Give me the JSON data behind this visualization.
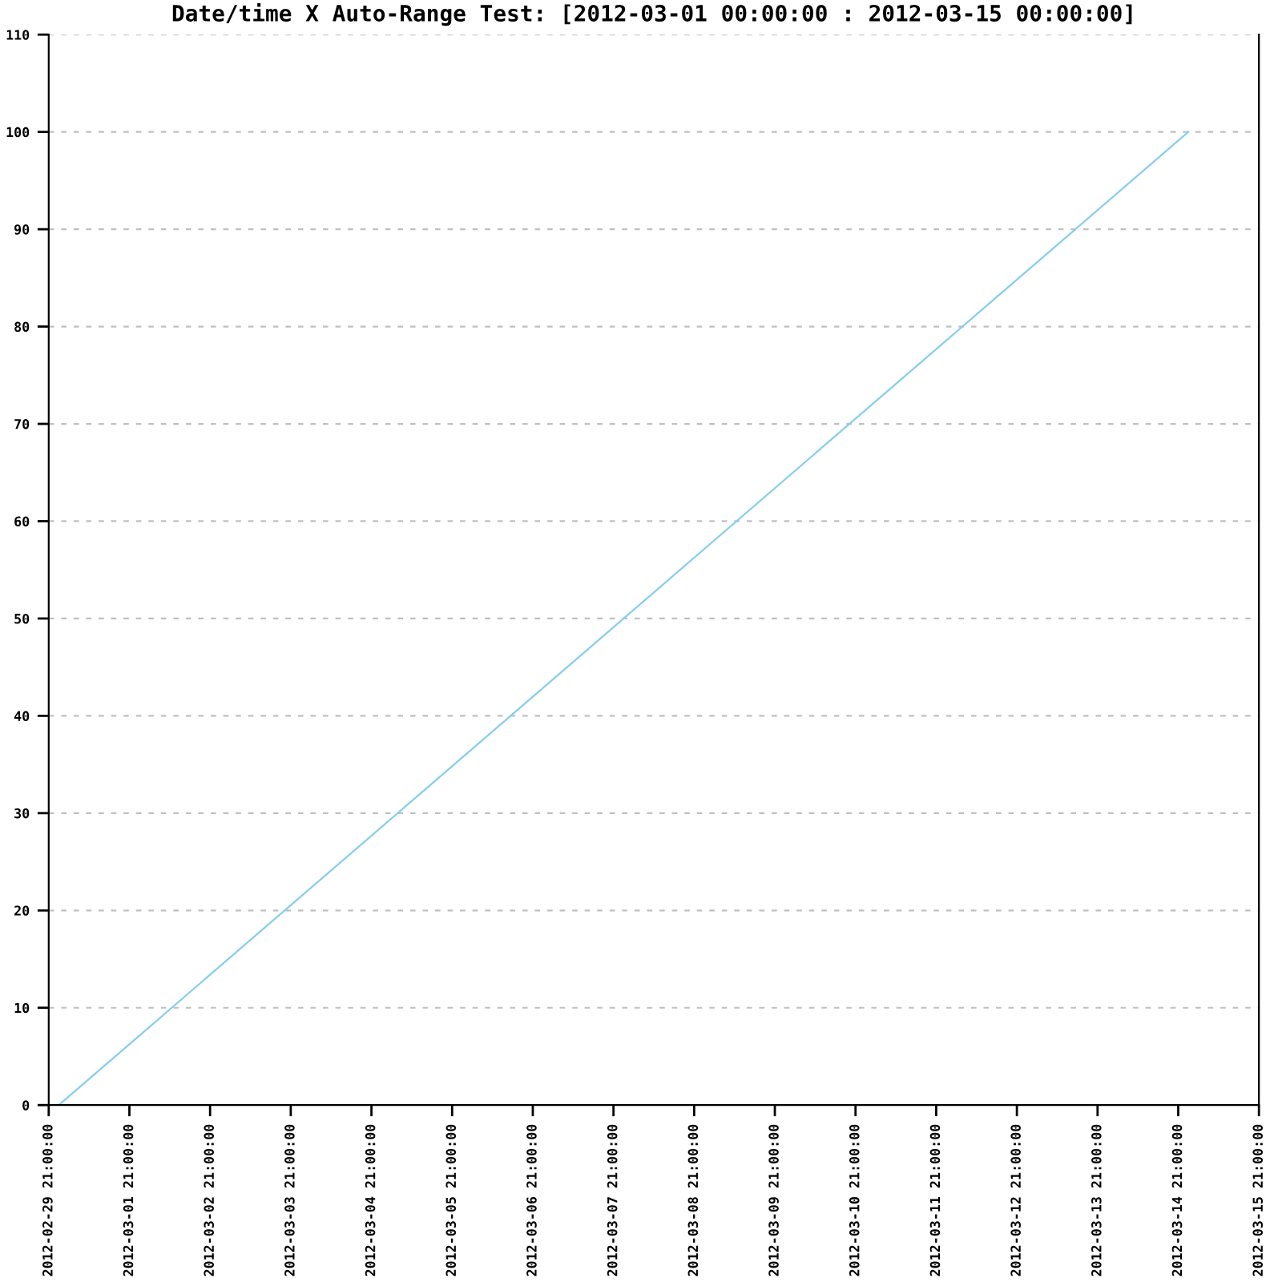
{
  "chart_data": {
    "type": "line",
    "title": "Date/time X Auto-Range Test: [2012-03-01 00:00:00 : 2012-03-15 00:00:00]",
    "x": [
      "2012-03-01T00:00",
      "2012-03-15T00:00"
    ],
    "series": [
      {
        "color": "#87ceeb",
        "values": [
          0,
          100
        ]
      }
    ],
    "xlim": [
      "2012-02-29T21:00",
      "2012-03-15T21:00"
    ],
    "xticks": [
      {
        "value": "2012-02-29T21:00",
        "label": "2012-02-29 21:00:00"
      },
      {
        "value": "2012-03-01T21:00",
        "label": "2012-03-01 21:00:00"
      },
      {
        "value": "2012-03-02T21:00",
        "label": "2012-03-02 21:00:00"
      },
      {
        "value": "2012-03-03T21:00",
        "label": "2012-03-03 21:00:00"
      },
      {
        "value": "2012-03-04T21:00",
        "label": "2012-03-04 21:00:00"
      },
      {
        "value": "2012-03-05T21:00",
        "label": "2012-03-05 21:00:00"
      },
      {
        "value": "2012-03-06T21:00",
        "label": "2012-03-06 21:00:00"
      },
      {
        "value": "2012-03-07T21:00",
        "label": "2012-03-07 21:00:00"
      },
      {
        "value": "2012-03-08T21:00",
        "label": "2012-03-08 21:00:00"
      },
      {
        "value": "2012-03-09T21:00",
        "label": "2012-03-09 21:00:00"
      },
      {
        "value": "2012-03-10T21:00",
        "label": "2012-03-10 21:00:00"
      },
      {
        "value": "2012-03-11T21:00",
        "label": "2012-03-11 21:00:00"
      },
      {
        "value": "2012-03-12T21:00",
        "label": "2012-03-12 21:00:00"
      },
      {
        "value": "2012-03-13T21:00",
        "label": "2012-03-13 21:00:00"
      },
      {
        "value": "2012-03-14T21:00",
        "label": "2012-03-14 21:00:00"
      },
      {
        "value": "2012-03-15T21:00",
        "label": "2012-03-15 21:00:00"
      }
    ],
    "ylim": [
      0,
      110
    ],
    "yticks": [
      0,
      10,
      20,
      30,
      40,
      50,
      60,
      70,
      80,
      90,
      100,
      110
    ],
    "grid": "y",
    "line_style": "solid"
  }
}
